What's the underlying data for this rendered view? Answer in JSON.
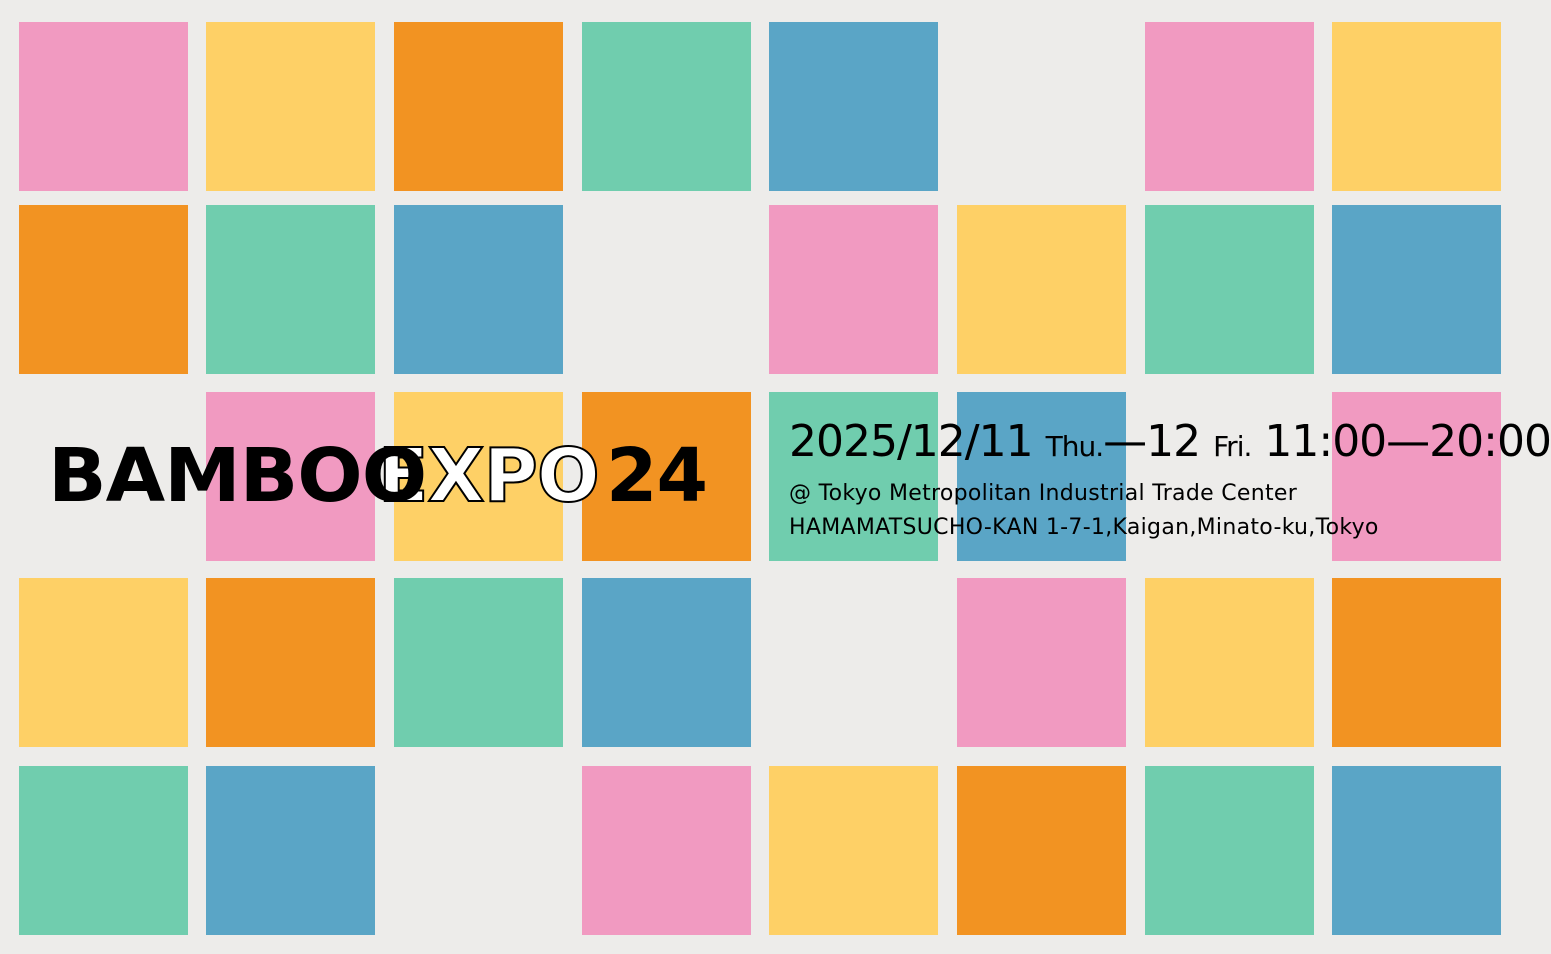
{
  "palette": {
    "P": "#f19ac1",
    "Y": "#fed066",
    "O": "#f29322",
    "G": "#70cdae",
    "B": "#5aa5c6",
    "background": "#edecea"
  },
  "grid": [
    [
      "P",
      "Y",
      "O",
      "G",
      "B",
      "",
      "P",
      "Y"
    ],
    [
      "O",
      "G",
      "B",
      "",
      "P",
      "Y",
      "G",
      "B"
    ],
    [
      "",
      "P",
      "Y",
      "O",
      "G",
      "B",
      "",
      "P"
    ],
    [
      "Y",
      "O",
      "G",
      "B",
      "",
      "P",
      "Y",
      "O"
    ],
    [
      "G",
      "B",
      "",
      "P",
      "Y",
      "O",
      "G",
      "B"
    ]
  ],
  "title": {
    "word1": "BAMBOO",
    "word2": "EXPO",
    "number": "24"
  },
  "event": {
    "date_start": "2025/12/11",
    "day_start": "Thu.",
    "dash": "—",
    "date_end": "12",
    "day_end": "Fri.",
    "time": "11:00—20:00",
    "venue": "@ Tokyo Metropolitan Industrial Trade Center",
    "address": "HAMAMATSUCHO-KAN 1-7-1,Kaigan,Minato-ku,Tokyo"
  }
}
